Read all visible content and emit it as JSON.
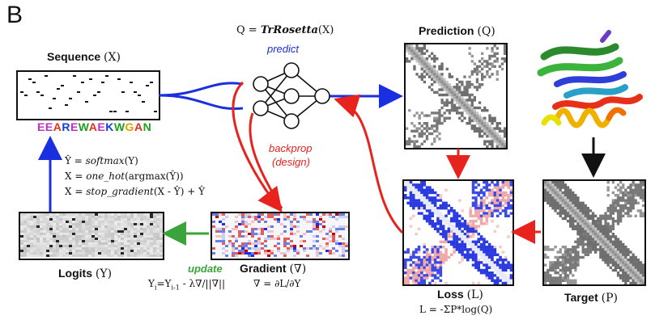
{
  "panel_label": "B",
  "network": {
    "title_prefix": "Q = ",
    "title_model": "TrRosetta",
    "title_suffix": "(X)",
    "predict_label": "predict",
    "backprop_label": "backprop",
    "design_label": "(design)"
  },
  "sequence": {
    "title": "Sequence",
    "symbol": "(X)",
    "letters": [
      "E",
      "E",
      "A",
      "R",
      "E",
      "W",
      "A",
      "E",
      "K",
      "W",
      "G",
      "A",
      "N"
    ],
    "letter_colors": [
      "#c030c0",
      "#c030c0",
      "#e03020",
      "#1040e0",
      "#c030c0",
      "#20a020",
      "#e03020",
      "#c030c0",
      "#1040e0",
      "#20a020",
      "#e0a000",
      "#e03020",
      "#20a020"
    ]
  },
  "equations": {
    "line1_lhs": "Ŷ = ",
    "line1_fn": "softmax",
    "line1_arg": "(Y)",
    "line2_lhs": "X = ",
    "line2_fn": "one_hot",
    "line2_arg": "(argmax(Ŷ))",
    "line3_lhs": "X = ",
    "line3_fn": "stop_gradient",
    "line3_arg": "(X - Ŷ) + Ŷ"
  },
  "logits": {
    "title": "Logits",
    "symbol": "(Y)"
  },
  "gradient": {
    "title": "Gradient",
    "symbol": "(∇)",
    "formula": "∇ = ∂L/∂Y"
  },
  "update": {
    "label": "update",
    "formula": "Yi=Yi-1 - λ∇/||∇||"
  },
  "prediction": {
    "title": "Prediction",
    "symbol": "(Q)"
  },
  "loss": {
    "title": "Loss",
    "symbol": "(L)",
    "formula": "L = -ΣP*log(Q)"
  },
  "target": {
    "title": "Target",
    "symbol": "(P)"
  },
  "colors": {
    "blue_arrow": "#1a2fe0",
    "red_arrow": "#e8221c",
    "green_arrow": "#3aa33a",
    "black_arrow": "#111111"
  }
}
